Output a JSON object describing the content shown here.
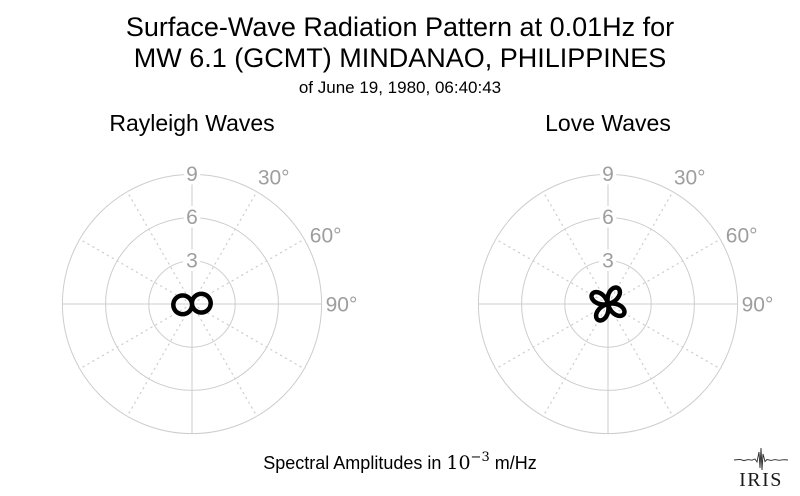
{
  "header": {
    "title_line1": "Surface-Wave Radiation Pattern at 0.01Hz for",
    "title_line2": "MW 6.1 (GCMT) MINDANAO, PHILIPPINES",
    "subtitle": "of June 19, 1980, 06:40:43"
  },
  "footer": {
    "caption_prefix": "Spectral Amplitudes in ",
    "caption_math_base": "10",
    "caption_math_exp": "−3",
    "caption_suffix": " m/Hz",
    "logo_text": "IRIS"
  },
  "colors": {
    "background": "#ffffff",
    "grid": "#cdcdcd",
    "labels": "#9e9e9e",
    "pattern": "#000000",
    "title_text": "#000000",
    "logo": "#1f1f1f"
  },
  "chart_data": [
    {
      "type": "line",
      "subtype": "polar_radiation_pattern",
      "title": "Rayleigh Waves",
      "radial_ticks": [
        3,
        6,
        9
      ],
      "radial_tick_labels": [
        "3",
        "6",
        "9"
      ],
      "radial_max": 9,
      "angle_ticks_deg": [
        30,
        60,
        90
      ],
      "angle_tick_labels": [
        "30°",
        "60°",
        "90°"
      ],
      "spoke_interval_deg": 30,
      "grid": "on",
      "units": "10⁻³ m/Hz",
      "pattern": {
        "model": "r(θ) = A·|sin(θ − θ0)|",
        "amplitude": 1.3,
        "lobe_count": 2,
        "rotation_deg": -5,
        "description": "two-lobed figure-eight oriented approximately east–west, centered at origin"
      }
    },
    {
      "type": "line",
      "subtype": "polar_radiation_pattern",
      "title": "Love Waves",
      "radial_ticks": [
        3,
        6,
        9
      ],
      "radial_tick_labels": [
        "3",
        "6",
        "9"
      ],
      "radial_max": 9,
      "angle_ticks_deg": [
        30,
        60,
        90
      ],
      "angle_tick_labels": [
        "30°",
        "60°",
        "90°"
      ],
      "spoke_interval_deg": 30,
      "grid": "on",
      "units": "10⁻³ m/Hz",
      "pattern": {
        "model": "r(θ) = A·|sin(2(θ − θ0))|",
        "amplitude": 1.3,
        "lobe_count": 4,
        "rotation_deg": -13,
        "description": "four-petal clover rotated ~13° counterclockwise from the diagonals, centered at origin"
      }
    }
  ]
}
